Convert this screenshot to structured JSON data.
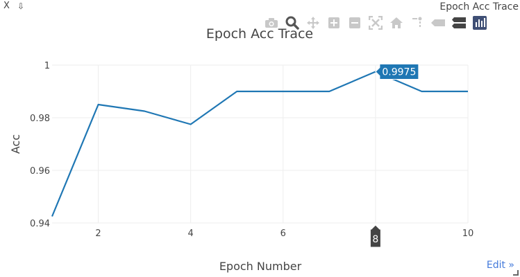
{
  "window": {
    "close_label": "X",
    "pin_label": "⇩",
    "tab_title": "Epoch Acc Trace"
  },
  "modebar": {
    "buttons": [
      {
        "icon": "camera-icon"
      },
      {
        "icon": "zoom-icon"
      },
      {
        "icon": "pan-icon"
      },
      {
        "icon": "zoom-in-icon"
      },
      {
        "icon": "zoom-out-icon"
      },
      {
        "icon": "autoscale-icon"
      },
      {
        "icon": "home-icon"
      },
      {
        "icon": "spike-lines-icon"
      },
      {
        "icon": "hover-closest-icon"
      },
      {
        "icon": "hover-compare-icon"
      },
      {
        "icon": "plotly-logo-icon"
      }
    ]
  },
  "edit_link": "Edit »",
  "colors": {
    "line": "#1f77b4",
    "grid": "#eeeeee",
    "text": "#444444",
    "hover_label_bg": "#1f77b4",
    "spike_label_bg": "#444444",
    "edit_link": "#447adb"
  },
  "chart_data": {
    "type": "line",
    "title": "Epoch Acc Trace",
    "xlabel": "Epoch Number",
    "ylabel": "Acc",
    "x": [
      1,
      2,
      3,
      4,
      5,
      6,
      7,
      8,
      9,
      10
    ],
    "series": [
      {
        "values": [
          0.9425,
          0.985,
          0.9825,
          0.9775,
          0.99,
          0.99,
          0.99,
          0.9975,
          0.99,
          0.99
        ]
      }
    ],
    "xlim": [
      1,
      10
    ],
    "ylim": [
      0.94,
      1.0
    ],
    "x_ticks": [
      2,
      4,
      6,
      8,
      10
    ],
    "x_tick_labels": [
      "2",
      "4",
      "6",
      "",
      "10"
    ],
    "y_ticks": [
      0.94,
      0.96,
      0.98,
      1.0
    ],
    "y_tick_labels": [
      "0.94",
      "0.96",
      "0.98",
      "1"
    ],
    "grid": true,
    "hover": {
      "x": 8,
      "y": 0.9975,
      "y_label": "0.9975",
      "x_label": "8"
    }
  }
}
